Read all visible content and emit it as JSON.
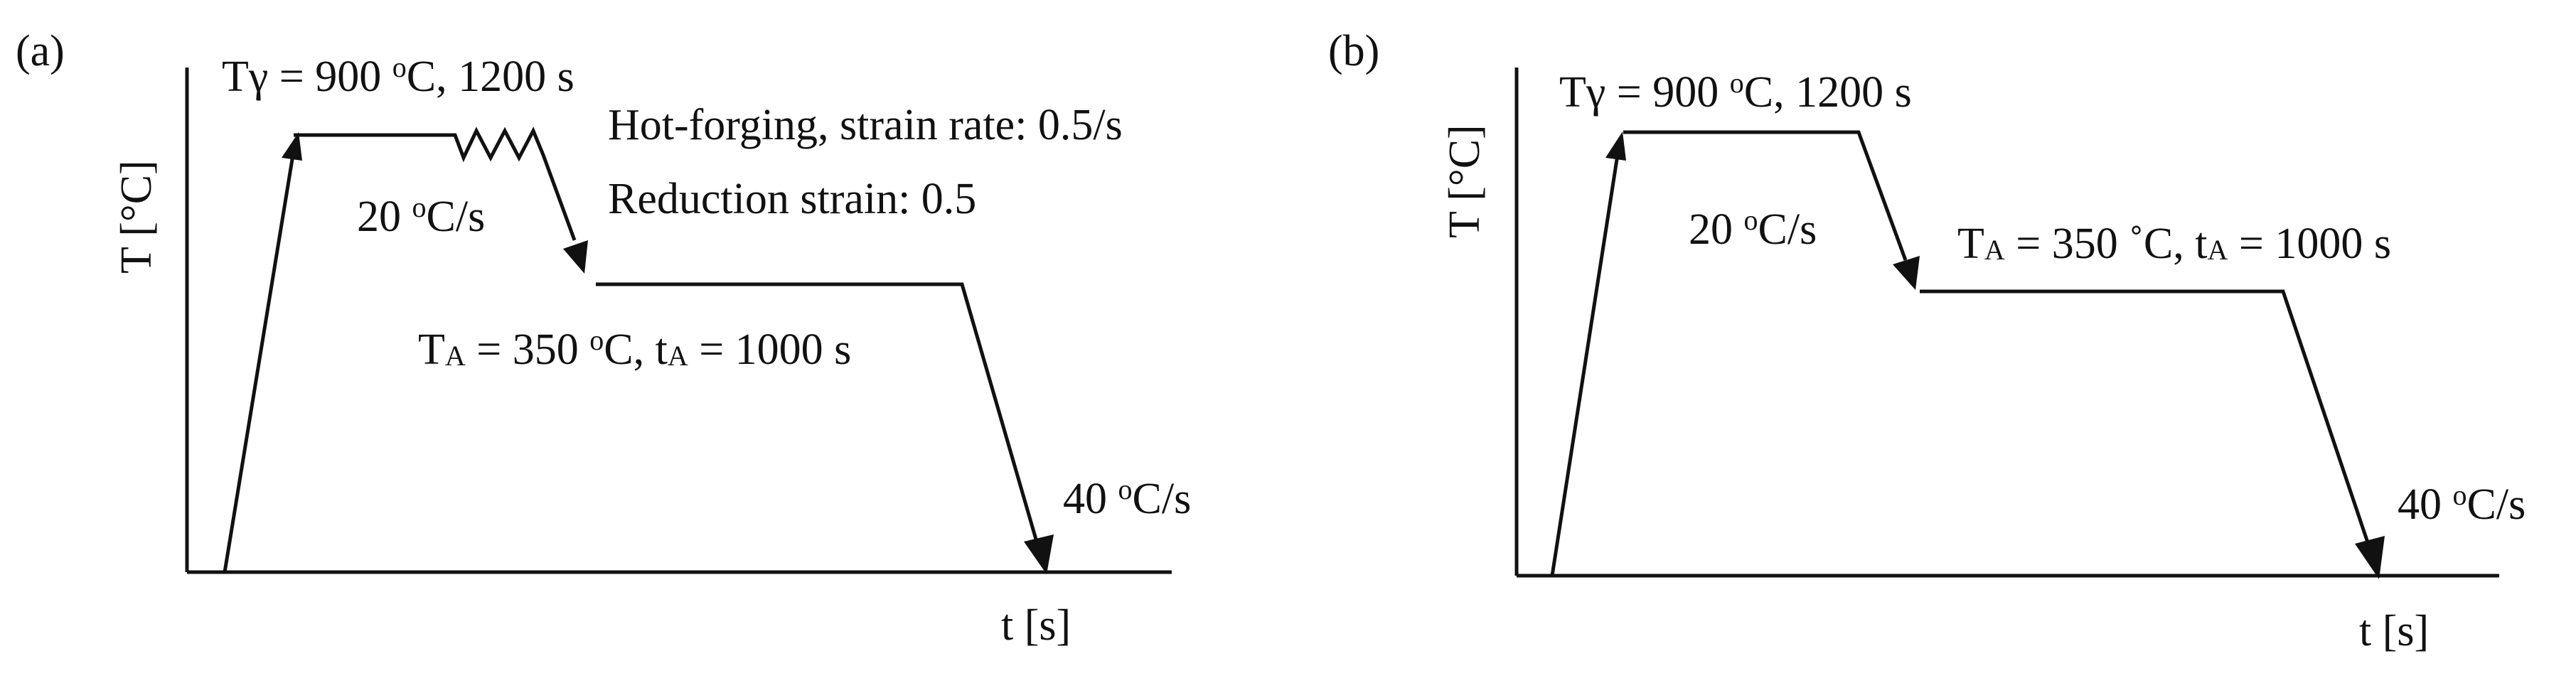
{
  "panels": [
    {
      "id": "a",
      "label": "(a)",
      "y_axis_label": "T [°C]",
      "x_axis_label": "t [s]",
      "austenitize": {
        "prefix": "Tγ = 900 ",
        "degree": "o",
        "suffix": "C, 1200 s"
      },
      "cooling_1": {
        "prefix": "20 ",
        "degree": "o",
        "suffix": "C/s"
      },
      "forging_line_1": "Hot-forging, strain rate: 0.5/s",
      "forging_line_2": "Reduction strain: 0.5",
      "austemper": {
        "t": "T",
        "t_sub": "A",
        "mid": " = 350 ",
        "degree": "o",
        "c": "C, t",
        "t2_sub": "A",
        "end": " = 1000 s"
      },
      "cooling_2": {
        "prefix": "40 ",
        "degree": "o",
        "suffix": "C/s"
      }
    },
    {
      "id": "b",
      "label": "(b)",
      "y_axis_label": "T [°C]",
      "x_axis_label": "t [s]",
      "austenitize": {
        "prefix": "Tγ = 900 ",
        "degree": "o",
        "suffix": "C, 1200 s"
      },
      "cooling_1": {
        "prefix": "20 ",
        "degree": "o",
        "suffix": "C/s"
      },
      "austemper": {
        "t": "T",
        "t_sub": "A",
        "mid": " = 350 ",
        "degree": "˚",
        "c": "C, t",
        "t2_sub": "A",
        "end": " = 1000 s"
      },
      "cooling_2": {
        "prefix": "40 ",
        "degree": "o",
        "suffix": "C/s"
      }
    }
  ],
  "colors": {
    "ink": "#111111",
    "background": "#ffffff"
  }
}
